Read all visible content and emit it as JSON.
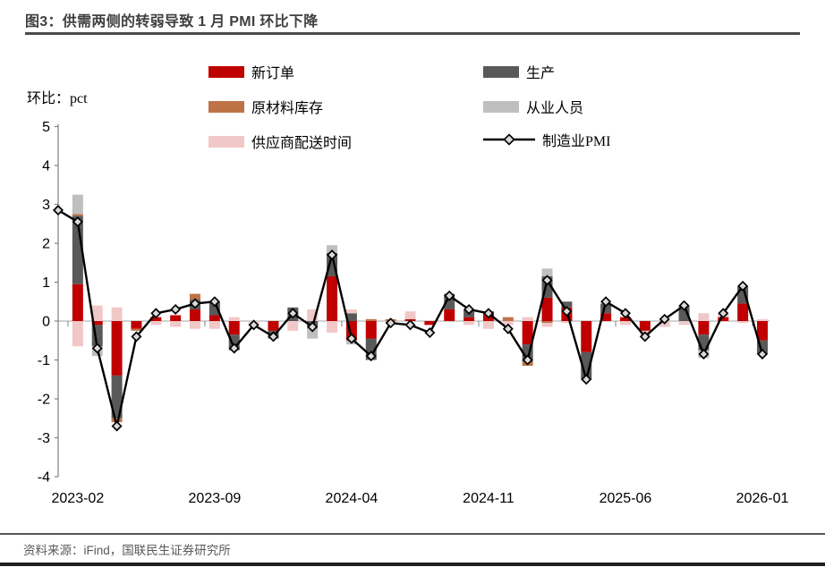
{
  "title": "图3：供需两侧的转弱导致 1 月 PMI 环比下降",
  "y_axis_label": "环比：pct",
  "source": "资料来源：iFind，国联民生证券研究所",
  "legend": [
    {
      "label": "新订单",
      "color": "#C00000",
      "type": "bar"
    },
    {
      "label": "生产",
      "color": "#595959",
      "type": "bar"
    },
    {
      "label": "原材料库存",
      "color": "#BE7347",
      "type": "bar"
    },
    {
      "label": "从业人员",
      "color": "#BFBFBF",
      "type": "bar"
    },
    {
      "label": "供应商配送时间",
      "color": "#F0C8C8",
      "type": "bar"
    },
    {
      "label": "制造业PMI",
      "color": "#000000",
      "type": "line",
      "marker_fill": "#D9D9D9"
    }
  ],
  "chart_data": {
    "type": "stacked-bar-with-line",
    "title": "图3：供需两侧的转弱导致 1 月 PMI 环比下降",
    "ylabel": "环比：pct",
    "ylim": [
      -4,
      5
    ],
    "y_ticks": [
      5,
      4,
      3,
      2,
      1,
      0,
      -1,
      -2,
      -3,
      -4
    ],
    "grid": "zero-line-only",
    "legend_position": "top",
    "categories": [
      "2023-01",
      "2023-02",
      "2023-03",
      "2023-04",
      "2023-05",
      "2023-06",
      "2023-07",
      "2023-08",
      "2023-09",
      "2023-10",
      "2023-11",
      "2023-12",
      "2024-01",
      "2024-02",
      "2024-03",
      "2024-04",
      "2024-05",
      "2024-06",
      "2024-07",
      "2024-08",
      "2024-09",
      "2024-10",
      "2024-11",
      "2024-12",
      "2025-01",
      "2025-02",
      "2025-03",
      "2025-04",
      "2025-05",
      "2025-06",
      "2025-07",
      "2025-08",
      "2025-09",
      "2025-10",
      "2025-11",
      "2025-12",
      "2026-01"
    ],
    "x_ticks": [
      {
        "index": 1,
        "label": "2023-02"
      },
      {
        "index": 8,
        "label": "2023-09"
      },
      {
        "index": 15,
        "label": "2024-04"
      },
      {
        "index": 22,
        "label": "2024-11"
      },
      {
        "index": 29,
        "label": "2025-06"
      },
      {
        "index": 36,
        "label": "2026-01"
      }
    ],
    "series": [
      {
        "name": "新订单",
        "type": "bar",
        "color": "#C00000",
        "values": [
          0,
          0.95,
          -0.1,
          -1.4,
          -0.2,
          0.1,
          0.15,
          0.3,
          0.15,
          -0.35,
          0,
          -0.25,
          0,
          0,
          1.15,
          -0.5,
          -0.45,
          0,
          0.05,
          -0.1,
          0.3,
          0.1,
          0.2,
          0,
          -0.6,
          0.6,
          0.35,
          -0.8,
          0.2,
          0.1,
          -0.25,
          0,
          0,
          -0.35,
          0.1,
          0.45,
          -0.5
        ]
      },
      {
        "name": "生产",
        "type": "bar",
        "color": "#595959",
        "values": [
          0,
          1.75,
          -0.55,
          -1.1,
          0,
          0,
          0,
          0.25,
          0.35,
          -0.4,
          0,
          -0.2,
          0.35,
          -0.15,
          0.6,
          0.2,
          -0.55,
          0,
          0,
          0,
          0.4,
          0.2,
          0.05,
          0,
          -0.45,
          0.55,
          0.15,
          -0.7,
          0.25,
          0,
          0,
          0,
          0.4,
          -0.4,
          0,
          0.45,
          -0.35
        ]
      },
      {
        "name": "原材料库存",
        "type": "bar",
        "color": "#BE7347",
        "values": [
          0,
          0.05,
          0,
          -0.1,
          -0.05,
          0,
          0,
          0.15,
          0,
          0,
          0,
          0,
          0,
          -0.05,
          0,
          0,
          0.05,
          0.05,
          0,
          0,
          0,
          0,
          0,
          0.1,
          -0.1,
          -0.05,
          0,
          0,
          0,
          0,
          0,
          0,
          0,
          0,
          0,
          0,
          0
        ]
      },
      {
        "name": "从业人员",
        "type": "bar",
        "color": "#BFBFBF",
        "values": [
          0,
          0.5,
          -0.25,
          0,
          0,
          0,
          0,
          0,
          0,
          0,
          0,
          0,
          0,
          -0.25,
          0.2,
          -0.1,
          0,
          0,
          0,
          0,
          0,
          0,
          0,
          0,
          0,
          0.2,
          0,
          0,
          0,
          0,
          0,
          0,
          0,
          -0.2,
          0,
          0,
          0
        ]
      },
      {
        "name": "供应商配送时间",
        "type": "bar",
        "color": "#F0C8C8",
        "values": [
          0,
          -0.65,
          0.4,
          0.35,
          0,
          -0.1,
          -0.15,
          -0.2,
          -0.2,
          0.1,
          -0.1,
          0,
          -0.25,
          0.3,
          -0.3,
          0.1,
          0,
          -0.05,
          0.2,
          0,
          0,
          -0.1,
          -0.2,
          -0.1,
          0.1,
          -0.1,
          -0.05,
          0,
          0,
          -0.1,
          -0.1,
          -0.15,
          -0.1,
          0.2,
          0.1,
          -0.05,
          0.05
        ]
      },
      {
        "name": "制造业PMI",
        "type": "line",
        "color": "#000000",
        "marker": "diamond",
        "marker_fill": "#D9D9D9",
        "values": [
          2.85,
          2.55,
          -0.7,
          -2.7,
          -0.4,
          0.2,
          0.3,
          0.45,
          0.5,
          -0.7,
          -0.1,
          -0.4,
          0.2,
          -0.15,
          1.7,
          -0.45,
          -0.9,
          -0.05,
          -0.1,
          -0.3,
          0.65,
          0.3,
          0.2,
          -0.2,
          -1.0,
          1.05,
          0.25,
          -1.5,
          0.5,
          0.2,
          -0.4,
          0.05,
          0.4,
          -0.85,
          0.2,
          0.9,
          -0.85
        ]
      }
    ]
  }
}
